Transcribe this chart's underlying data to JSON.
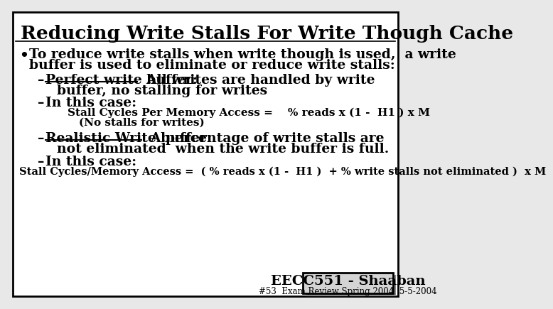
{
  "title": "Reducing Write Stalls For Write Though Cache",
  "bg_color": "#e8e8e8",
  "slide_bg": "#ffffff",
  "border_color": "#000000",
  "title_fontsize": 19,
  "body_fontsize": 13.5,
  "small_fontsize": 11,
  "tiny_fontsize": 8.5,
  "footer_fontsize": 14,
  "bullet1_line1": "To reduce write stalls when write though is used,  a write",
  "bullet1_line2": "buffer is used to eliminate or reduce write stalls:",
  "dash1_underline": "Perfect write buffer:",
  "dash1_rest": "  All writes are handled by write",
  "dash1_rest2": "buffer, no stalling for writes",
  "dash2": "In this case:",
  "stall1": "Stall Cycles Per Memory Access =    % reads x (1 -  H1 ) x M",
  "stall1_note": "(No stalls for writes)",
  "dash3_underline": "Realistic Write buffer:",
  "dash3_rest": "  A percentage of write stalls are",
  "dash3_rest2": "not eliminated  when the write buffer is full.",
  "dash4": "In this case:",
  "stall2": "Stall Cycles/Memory Access =  ( % reads x (1 -  H1 )  + % write stalls not eliminated )  x M",
  "footer_label": "EECC551 - Shaaban",
  "footer_sub": "#53  Exam Review Spring 2004  5-5-2004",
  "under1_chars": 21,
  "under3_chars": 22
}
